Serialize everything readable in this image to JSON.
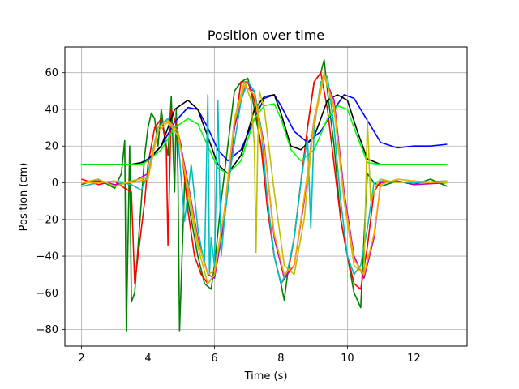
{
  "chart_data": {
    "type": "line",
    "title": "Position over time",
    "xlabel": "Time (s)",
    "ylabel": "Position (cm)",
    "xlim": [
      1.5,
      13.6
    ],
    "ylim": [
      -89,
      74
    ],
    "xticks": [
      2,
      4,
      6,
      8,
      10,
      12
    ],
    "yticks": [
      -80,
      -60,
      -40,
      -20,
      0,
      20,
      40,
      60
    ],
    "grid": true,
    "series": [
      {
        "color": "#008000",
        "x": [
          2.0,
          2.5,
          3.0,
          3.2,
          3.3,
          3.35,
          3.45,
          3.5,
          3.6,
          3.7,
          3.8,
          3.9,
          4.0,
          4.1,
          4.2,
          4.3,
          4.4,
          4.5,
          4.6,
          4.7,
          4.8,
          4.85,
          4.9,
          4.95,
          5.1,
          5.3,
          5.5,
          5.7,
          5.9,
          6.0,
          6.2,
          6.4,
          6.6,
          6.8,
          7.0,
          7.1,
          7.2,
          7.4,
          7.6,
          7.8,
          8.0,
          8.1,
          8.2,
          8.4,
          8.6,
          8.8,
          9.0,
          9.2,
          9.3,
          9.4,
          9.6,
          9.8,
          10.0,
          10.2,
          10.4,
          10.5,
          10.6,
          10.8,
          11.0,
          11.5,
          12.0,
          12.5,
          13.0
        ],
        "y": [
          -1,
          2,
          -3,
          5,
          23,
          -81,
          20,
          -65,
          -60,
          -35,
          -10,
          15,
          30,
          38,
          35,
          20,
          40,
          25,
          15,
          47,
          -5,
          40,
          5,
          -81,
          0,
          -20,
          -40,
          -55,
          -58,
          -45,
          -10,
          20,
          50,
          55,
          57,
          50,
          40,
          20,
          -10,
          -40,
          -55,
          -64,
          -50,
          -30,
          0,
          30,
          55,
          60,
          67,
          50,
          20,
          -20,
          -40,
          -60,
          -68,
          -30,
          5,
          0,
          -2,
          1,
          -1,
          2,
          -2
        ]
      },
      {
        "color": "#ff0000",
        "x": [
          2.0,
          2.5,
          3.0,
          3.3,
          3.5,
          3.6,
          3.7,
          3.9,
          4.0,
          4.2,
          4.4,
          4.55,
          4.6,
          4.7,
          4.8,
          5.0,
          5.2,
          5.4,
          5.6,
          5.8,
          6.0,
          6.2,
          6.4,
          6.6,
          6.8,
          7.0,
          7.2,
          7.4,
          7.6,
          7.8,
          8.0,
          8.2,
          8.4,
          8.6,
          8.8,
          9.0,
          9.2,
          9.4,
          9.6,
          9.8,
          10.0,
          10.2,
          10.4,
          10.6,
          10.8,
          11.0,
          12.0,
          13.0
        ],
        "y": [
          2,
          -1,
          1,
          -3,
          -5,
          -55,
          -40,
          -10,
          10,
          30,
          35,
          20,
          -34,
          40,
          35,
          20,
          -15,
          -40,
          -50,
          -55,
          -50,
          -30,
          0,
          30,
          55,
          55,
          45,
          20,
          -15,
          -40,
          -55,
          -50,
          -30,
          0,
          30,
          55,
          60,
          40,
          10,
          -20,
          -40,
          -55,
          -58,
          -35,
          -5,
          1,
          0,
          1
        ]
      },
      {
        "color": "#0000ff",
        "x": [
          2.0,
          2.5,
          3.0,
          3.5,
          3.8,
          4.0,
          4.4,
          4.8,
          5.2,
          5.5,
          5.8,
          6.1,
          6.4,
          6.8,
          7.2,
          7.5,
          7.8,
          8.0,
          8.4,
          8.8,
          9.2,
          9.6,
          9.9,
          10.2,
          10.6,
          11.0,
          11.5,
          12.0,
          12.5,
          13.0
        ],
        "y": [
          10,
          10,
          10,
          10,
          11,
          13,
          20,
          33,
          41,
          40,
          30,
          18,
          12,
          18,
          35,
          46,
          48,
          42,
          28,
          22,
          28,
          40,
          48,
          46,
          34,
          22,
          19,
          20,
          20,
          21
        ]
      },
      {
        "color": "#000000",
        "x": [
          2.0,
          2.5,
          3.0,
          3.5,
          3.8,
          4.0,
          4.4,
          4.8,
          5.2,
          5.5,
          5.8,
          6.1,
          6.4,
          6.8,
          7.2,
          7.5,
          7.8,
          8.0,
          8.3,
          8.6,
          9.0,
          9.4,
          9.7,
          10.0,
          10.3,
          10.6,
          11.0,
          11.5,
          12.0,
          12.5,
          13.0
        ],
        "y": [
          10,
          10,
          10,
          10,
          11,
          12,
          20,
          40,
          45,
          40,
          25,
          10,
          5,
          15,
          40,
          47,
          48,
          38,
          20,
          18,
          25,
          45,
          48,
          45,
          28,
          13,
          10,
          10,
          10,
          10,
          10
        ]
      },
      {
        "color": "#00ff00",
        "x": [
          2.0,
          2.5,
          3.0,
          3.5,
          3.8,
          4.0,
          4.4,
          4.8,
          5.2,
          5.5,
          5.8,
          6.1,
          6.4,
          6.8,
          7.2,
          7.5,
          7.8,
          8.0,
          8.3,
          8.6,
          9.0,
          9.4,
          9.7,
          10.0,
          10.3,
          10.6,
          11.0,
          11.5,
          12.0,
          12.5,
          13.0
        ],
        "y": [
          10,
          10,
          10,
          10,
          10,
          12,
          18,
          30,
          35,
          32,
          20,
          8,
          5,
          12,
          35,
          42,
          43,
          35,
          18,
          12,
          18,
          35,
          42,
          40,
          25,
          11,
          10,
          10,
          10,
          10,
          10
        ]
      },
      {
        "color": "#bf00bf",
        "x": [
          2.0,
          2.5,
          3.0,
          3.5,
          4.0,
          4.3,
          4.6,
          4.9,
          5.2,
          5.5,
          5.8,
          6.0,
          6.3,
          6.6,
          6.9,
          7.2,
          7.5,
          7.8,
          8.1,
          8.4,
          8.7,
          9.0,
          9.3,
          9.6,
          9.9,
          10.2,
          10.5,
          10.8,
          11.0,
          11.5,
          12.0,
          13.0
        ],
        "y": [
          0,
          1,
          -1,
          0,
          5,
          30,
          35,
          28,
          0,
          -30,
          -50,
          -52,
          -20,
          30,
          52,
          50,
          20,
          -30,
          -52,
          -45,
          -10,
          35,
          58,
          45,
          -5,
          -40,
          -52,
          -30,
          0,
          1,
          -1,
          0
        ]
      },
      {
        "color": "#00bfbf",
        "x": [
          2.0,
          2.5,
          3.0,
          3.5,
          3.8,
          4.0,
          4.3,
          4.6,
          4.9,
          5.1,
          5.3,
          5.5,
          5.7,
          5.8,
          5.85,
          5.9,
          6.0,
          6.1,
          6.2,
          6.3,
          6.5,
          6.8,
          7.0,
          7.2,
          7.4,
          7.6,
          7.8,
          8.0,
          8.2,
          8.4,
          8.6,
          8.8,
          8.9,
          9.0,
          9.2,
          9.4,
          9.6,
          9.8,
          10.0,
          10.2,
          10.4,
          10.6,
          10.8,
          11.0,
          12.0,
          13.0
        ],
        "y": [
          -2,
          0,
          1,
          -1,
          -4,
          5,
          30,
          35,
          25,
          -21,
          10,
          -25,
          -45,
          48,
          -50,
          -30,
          -45,
          45,
          -40,
          -20,
          10,
          45,
          55,
          50,
          30,
          -10,
          -40,
          -55,
          -48,
          -30,
          0,
          25,
          -25,
          30,
          55,
          58,
          30,
          -10,
          -40,
          -50,
          -45,
          -25,
          0,
          1,
          0,
          1
        ]
      },
      {
        "color": "#bfbf00",
        "x": [
          2.0,
          2.5,
          3.0,
          3.5,
          4.0,
          4.3,
          4.6,
          4.9,
          5.2,
          5.5,
          5.8,
          6.0,
          6.3,
          6.6,
          6.9,
          7.1,
          7.2,
          7.25,
          7.3,
          7.35,
          7.5,
          7.8,
          8.1,
          8.4,
          8.7,
          9.0,
          9.3,
          9.6,
          9.9,
          10.2,
          10.5,
          10.6,
          10.7,
          10.9,
          11.0,
          11.5,
          12.0,
          13.0
        ],
        "y": [
          0,
          2,
          -2,
          1,
          3,
          30,
          34,
          28,
          -5,
          -35,
          -55,
          -50,
          -15,
          35,
          55,
          45,
          20,
          -38,
          20,
          50,
          40,
          -5,
          -45,
          -50,
          -20,
          35,
          60,
          40,
          -10,
          -45,
          -50,
          35,
          -10,
          0,
          2,
          0,
          1,
          0
        ]
      },
      {
        "color": "#ffa500",
        "x": [
          2.0,
          2.5,
          3.0,
          3.5,
          4.0,
          4.3,
          4.6,
          4.9,
          5.2,
          5.5,
          5.8,
          6.0,
          6.3,
          6.6,
          6.9,
          7.2,
          7.5,
          7.8,
          8.1,
          8.4,
          8.7,
          9.0,
          9.3,
          9.6,
          9.9,
          10.2,
          10.5,
          10.8,
          11.0,
          11.5,
          12.0,
          12.5,
          13.0
        ],
        "y": [
          0,
          0,
          1,
          0,
          2,
          28,
          33,
          26,
          -2,
          -32,
          -50,
          -48,
          -15,
          33,
          53,
          48,
          18,
          -28,
          -50,
          -45,
          -8,
          33,
          58,
          42,
          -8,
          -42,
          -50,
          -28,
          -1,
          2,
          1,
          0,
          1
        ]
      }
    ]
  }
}
